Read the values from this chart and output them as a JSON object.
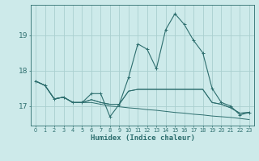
{
  "xlabel": "Humidex (Indice chaleur)",
  "background_color": "#cdeaea",
  "grid_color": "#aacfcf",
  "line_color": "#2d6e6e",
  "x_values": [
    0,
    1,
    2,
    3,
    4,
    5,
    6,
    7,
    8,
    9,
    10,
    11,
    12,
    13,
    14,
    15,
    16,
    17,
    18,
    19,
    20,
    21,
    22,
    23
  ],
  "series_flat1": [
    17.7,
    17.58,
    17.2,
    17.25,
    17.1,
    17.1,
    17.18,
    17.1,
    17.05,
    17.05,
    17.42,
    17.47,
    17.47,
    17.47,
    17.47,
    17.47,
    17.47,
    17.47,
    17.47,
    17.1,
    17.05,
    16.95,
    16.8,
    16.82
  ],
  "series_flat2": [
    17.7,
    17.58,
    17.2,
    17.25,
    17.1,
    17.1,
    17.18,
    17.1,
    17.05,
    17.05,
    17.42,
    17.47,
    17.47,
    17.47,
    17.47,
    17.47,
    17.47,
    17.47,
    17.47,
    17.1,
    17.05,
    16.95,
    16.8,
    16.82
  ],
  "series_main": [
    17.7,
    17.58,
    17.2,
    17.25,
    17.1,
    17.1,
    17.35,
    17.35,
    16.7,
    17.05,
    17.8,
    18.75,
    18.6,
    18.05,
    19.15,
    19.6,
    19.3,
    18.85,
    18.5,
    17.5,
    17.1,
    17.0,
    16.75,
    16.82
  ],
  "series_decline": [
    17.7,
    17.58,
    17.2,
    17.25,
    17.1,
    17.1,
    17.1,
    17.05,
    17.0,
    16.98,
    16.95,
    16.93,
    16.9,
    16.88,
    16.85,
    16.82,
    16.8,
    16.77,
    16.75,
    16.72,
    16.7,
    16.68,
    16.65,
    16.62
  ],
  "ylim": [
    16.45,
    19.85
  ],
  "yticks": [
    17,
    18,
    19
  ],
  "xtick_labels": [
    "0",
    "1",
    "2",
    "3",
    "4",
    "5",
    "6",
    "7",
    "8",
    "9",
    "10",
    "11",
    "12",
    "13",
    "14",
    "15",
    "16",
    "17",
    "18",
    "19",
    "20",
    "21",
    "22",
    "23"
  ],
  "figsize": [
    3.2,
    2.0
  ],
  "dpi": 100
}
